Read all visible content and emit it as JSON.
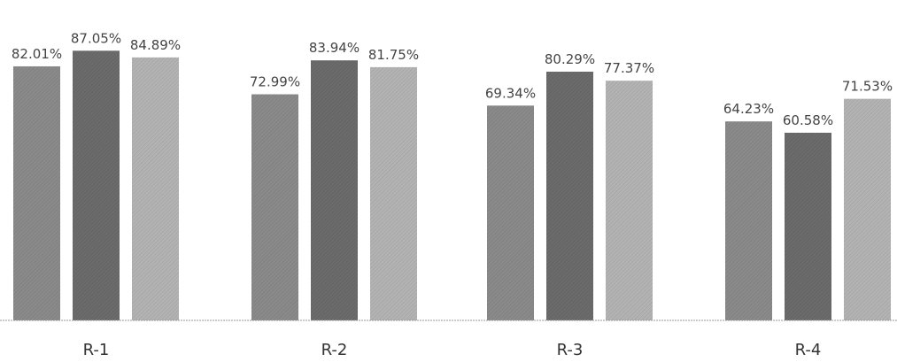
{
  "chart_data": {
    "type": "bar",
    "categories": [
      "R-1",
      "R-2",
      "R-3",
      "R-4"
    ],
    "series": [
      {
        "values": [
          82.01,
          72.99,
          69.34,
          64.23
        ],
        "labels": [
          "82.01%",
          "72.99%",
          "69.34%",
          "64.23%"
        ]
      },
      {
        "values": [
          87.05,
          83.94,
          80.29,
          60.58
        ],
        "labels": [
          "87.05%",
          "83.94%",
          "80.29%",
          "60.58%"
        ]
      },
      {
        "values": [
          84.89,
          81.75,
          77.37,
          71.53
        ],
        "labels": [
          "84.89%",
          "81.75%",
          "77.37%",
          "71.53%"
        ]
      }
    ],
    "colors": [
      "#8a8a8a",
      "#6b6b6b",
      "#b3b3b3"
    ],
    "ylim": [
      0,
      100
    ],
    "grid": false,
    "legend": "none"
  }
}
